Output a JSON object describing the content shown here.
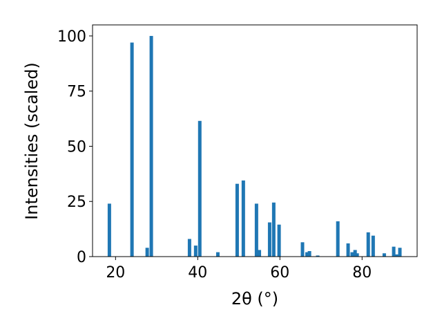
{
  "chart_data": {
    "type": "bar",
    "xlabel": "2θ (°)",
    "ylabel": "Intensities (scaled)",
    "x": [
      18.5,
      24.0,
      27.7,
      28.7,
      38.0,
      39.5,
      40.5,
      44.9,
      49.6,
      51.1,
      54.3,
      55.0,
      57.5,
      58.5,
      59.8,
      65.5,
      66.6,
      67.2,
      69.2,
      74.1,
      76.6,
      77.6,
      78.3,
      78.8,
      81.5,
      82.7,
      85.4,
      87.7,
      88.4,
      89.2
    ],
    "values": [
      24,
      97,
      4,
      100,
      8,
      5,
      61.5,
      2,
      33,
      34.5,
      24,
      3,
      15.5,
      24.5,
      14.5,
      6.5,
      2,
      2.5,
      0.5,
      16,
      6,
      2,
      3,
      1.5,
      11,
      9.5,
      1.5,
      4.5,
      1,
      4
    ],
    "color": "#1f77b4",
    "xlim": [
      14.4,
      93.4
    ],
    "xticks": [
      20,
      40,
      60,
      80
    ],
    "ylim": [
      0,
      105
    ],
    "yticks": [
      0,
      25,
      50,
      75,
      100
    ],
    "grid": false
  }
}
